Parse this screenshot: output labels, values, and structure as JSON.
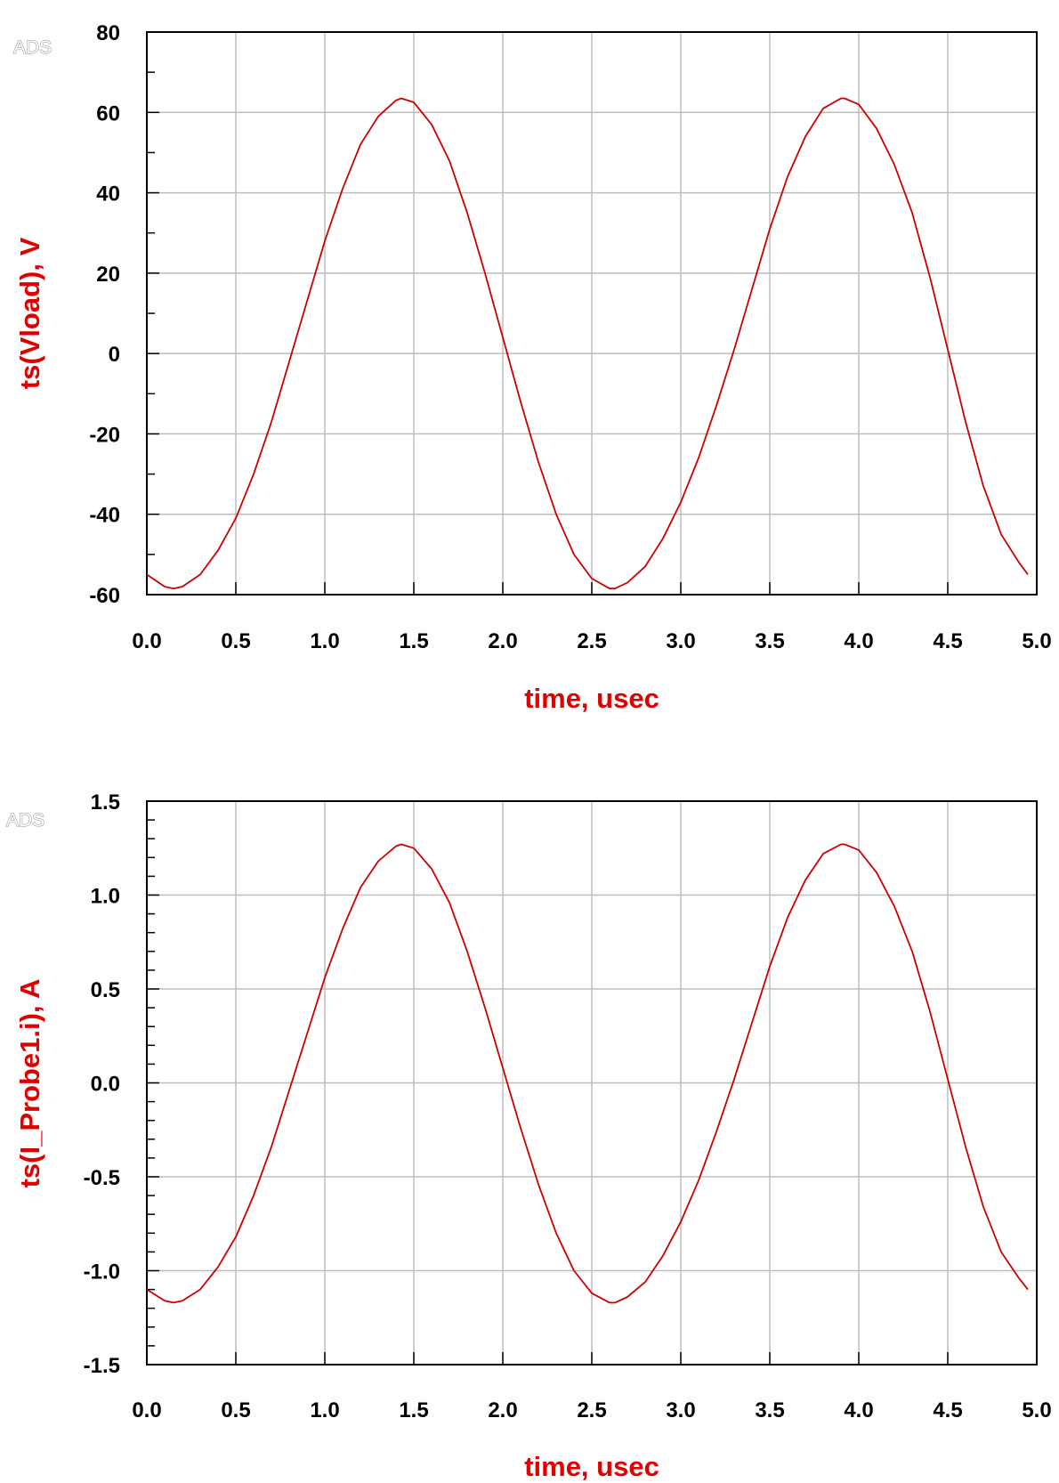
{
  "colors": {
    "trace": "#cc0000",
    "label": "#e00000",
    "grid": "#bdbdbd",
    "frame": "#000000"
  },
  "chart_data": [
    {
      "type": "line",
      "watermark": "ADS",
      "xlabel": "time, usec",
      "ylabel": "ts(Vload), V",
      "xlim": [
        0.0,
        5.0
      ],
      "ylim": [
        -60,
        80
      ],
      "x_ticks": [
        "0.0",
        "0.5",
        "1.0",
        "1.5",
        "2.0",
        "2.5",
        "3.0",
        "3.5",
        "4.0",
        "4.5",
        "5.0"
      ],
      "y_ticks": [
        "80",
        "60",
        "40",
        "20",
        "0",
        "-20",
        "-40",
        "-60"
      ],
      "y_tick_values": [
        80,
        60,
        40,
        20,
        0,
        -20,
        -40,
        -60
      ],
      "y_minor_step": 10,
      "grid": true,
      "series": [
        {
          "x": [
            0.0,
            0.1,
            0.15,
            0.2,
            0.3,
            0.4,
            0.5,
            0.6,
            0.7,
            0.8,
            0.9,
            1.0,
            1.1,
            1.2,
            1.3,
            1.4,
            1.43,
            1.5,
            1.6,
            1.7,
            1.8,
            1.9,
            2.0,
            2.1,
            2.2,
            2.3,
            2.4,
            2.5,
            2.6,
            2.63,
            2.7,
            2.8,
            2.9,
            3.0,
            3.1,
            3.2,
            3.3,
            3.4,
            3.5,
            3.6,
            3.7,
            3.8,
            3.9,
            3.92,
            4.0,
            4.1,
            4.2,
            4.3,
            4.4,
            4.5,
            4.6,
            4.7,
            4.8,
            4.9,
            4.95
          ],
          "y": [
            -55,
            -58,
            -58.5,
            -58,
            -55,
            -49,
            -41,
            -30,
            -17,
            -2,
            13,
            28,
            41,
            52,
            59,
            63,
            63.5,
            62.5,
            57,
            48,
            35,
            20,
            4,
            -12,
            -27,
            -40,
            -50,
            -56,
            -58.5,
            -58.5,
            -57,
            -53,
            -46,
            -37,
            -26,
            -13,
            1,
            16,
            31,
            44,
            54,
            61,
            63.5,
            63.5,
            62,
            56,
            47,
            35,
            19,
            1,
            -17,
            -33,
            -45,
            -52,
            -55
          ]
        }
      ]
    },
    {
      "type": "line",
      "watermark": "ADS",
      "xlabel": "time, usec",
      "ylabel": "ts(I_Probe1.i), A",
      "xlim": [
        0.0,
        5.0
      ],
      "ylim": [
        -1.5,
        1.5
      ],
      "x_ticks": [
        "0.0",
        "0.5",
        "1.0",
        "1.5",
        "2.0",
        "2.5",
        "3.0",
        "3.5",
        "4.0",
        "4.5",
        "5.0"
      ],
      "y_ticks": [
        "1.5",
        "1.0",
        "0.5",
        "0.0",
        "-0.5",
        "-1.0",
        "-1.5"
      ],
      "y_tick_values": [
        1.5,
        1.0,
        0.5,
        0.0,
        -0.5,
        -1.0,
        -1.5
      ],
      "y_minor_step": 0.1,
      "grid": true,
      "series": [
        {
          "x": [
            0.0,
            0.1,
            0.15,
            0.2,
            0.3,
            0.4,
            0.5,
            0.6,
            0.7,
            0.8,
            0.9,
            1.0,
            1.1,
            1.2,
            1.3,
            1.4,
            1.43,
            1.5,
            1.6,
            1.7,
            1.8,
            1.9,
            2.0,
            2.1,
            2.2,
            2.3,
            2.4,
            2.5,
            2.6,
            2.63,
            2.7,
            2.8,
            2.9,
            3.0,
            3.1,
            3.2,
            3.3,
            3.4,
            3.5,
            3.6,
            3.7,
            3.8,
            3.9,
            3.92,
            4.0,
            4.1,
            4.2,
            4.3,
            4.4,
            4.5,
            4.6,
            4.7,
            4.8,
            4.9,
            4.95
          ],
          "y": [
            -1.1,
            -1.16,
            -1.17,
            -1.16,
            -1.1,
            -0.98,
            -0.82,
            -0.6,
            -0.34,
            -0.04,
            0.26,
            0.56,
            0.82,
            1.04,
            1.18,
            1.26,
            1.27,
            1.25,
            1.14,
            0.96,
            0.7,
            0.4,
            0.08,
            -0.24,
            -0.54,
            -0.8,
            -1.0,
            -1.12,
            -1.17,
            -1.17,
            -1.14,
            -1.06,
            -0.92,
            -0.74,
            -0.52,
            -0.26,
            0.02,
            0.32,
            0.62,
            0.88,
            1.08,
            1.22,
            1.27,
            1.27,
            1.24,
            1.12,
            0.94,
            0.7,
            0.38,
            0.02,
            -0.34,
            -0.66,
            -0.9,
            -1.04,
            -1.1
          ]
        }
      ]
    }
  ]
}
